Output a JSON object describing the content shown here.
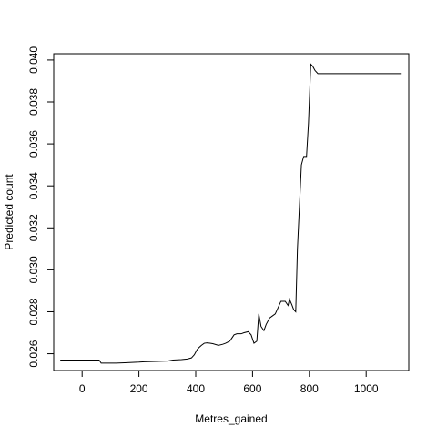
{
  "chart_data": {
    "type": "line",
    "title": "",
    "xlabel": "Metres_gained",
    "ylabel": "Predicted count",
    "xlim": [
      -100,
      1150
    ],
    "ylim": [
      0.0252,
      0.0403
    ],
    "x_ticks": [
      0,
      200,
      400,
      600,
      800,
      1000
    ],
    "x_tick_labels": [
      "0",
      "200",
      "400",
      "600",
      "800",
      "1000"
    ],
    "y_ticks": [
      0.026,
      0.028,
      0.03,
      0.032,
      0.034,
      0.036,
      0.038,
      0.04
    ],
    "y_tick_labels": [
      "0.026",
      "0.028",
      "0.030",
      "0.032",
      "0.034",
      "0.036",
      "0.038",
      "0.040"
    ],
    "grid": false,
    "legend": "none",
    "series": [
      {
        "x": [
          -77,
          60,
          67,
          120,
          150,
          200,
          220,
          300,
          320,
          350,
          370,
          385,
          395,
          405,
          412,
          420,
          430,
          440,
          450,
          460,
          480,
          495,
          505,
          520,
          535,
          545,
          560,
          570,
          585,
          595,
          605,
          615,
          622,
          630,
          640,
          648,
          660,
          670,
          680,
          700,
          715,
          725,
          730,
          738,
          745,
          752,
          758,
          765,
          772,
          780,
          785,
          790,
          797,
          805,
          812,
          820,
          830,
          840,
          1125
        ],
        "y": [
          0.0257,
          0.0257,
          0.02555,
          0.02555,
          0.02557,
          0.0256,
          0.02562,
          0.02565,
          0.0257,
          0.02572,
          0.02575,
          0.0258,
          0.02595,
          0.0262,
          0.0263,
          0.0264,
          0.0265,
          0.02652,
          0.0265,
          0.02648,
          0.0264,
          0.02645,
          0.0265,
          0.0266,
          0.0269,
          0.02695,
          0.02695,
          0.027,
          0.02705,
          0.0269,
          0.0265,
          0.0266,
          0.0279,
          0.0273,
          0.0271,
          0.0274,
          0.0277,
          0.0278,
          0.0279,
          0.0285,
          0.0285,
          0.0283,
          0.0286,
          0.02835,
          0.0281,
          0.028,
          0.031,
          0.033,
          0.035,
          0.0354,
          0.0354,
          0.0354,
          0.037,
          0.0398,
          0.0397,
          0.0395,
          0.03935,
          0.03935,
          0.03935
        ]
      }
    ]
  }
}
